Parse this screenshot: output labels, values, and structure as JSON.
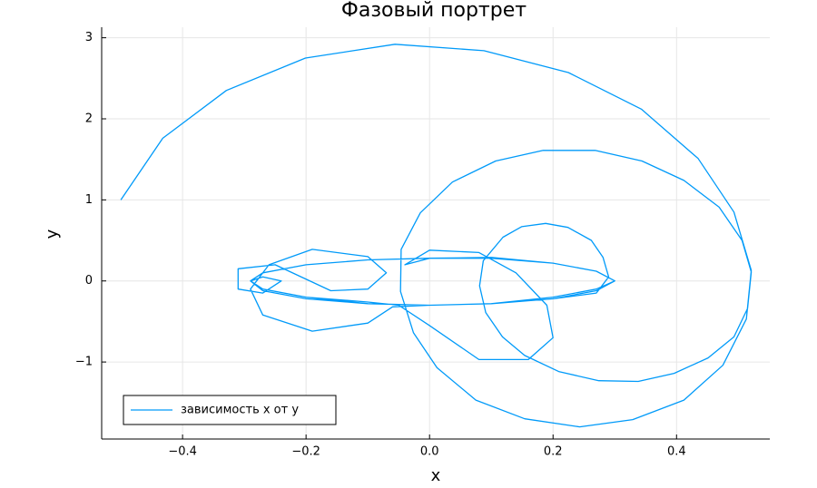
{
  "chart_data": {
    "type": "line",
    "title": "Фазовый портрет",
    "x_label": "x",
    "y_label": "y",
    "x": [
      -0.5,
      -0.432,
      -0.329,
      -0.201,
      -0.056,
      0.088,
      0.225,
      0.343,
      0.435,
      0.493,
      0.521,
      0.513,
      0.475,
      0.412,
      0.329,
      0.243,
      0.154,
      0.075,
      0.012,
      -0.026,
      -0.047,
      -0.046,
      -0.015,
      0.037,
      0.107,
      0.184,
      0.268,
      0.344,
      0.412,
      0.469,
      0.506,
      0.521,
      0.515,
      0.493,
      0.451,
      0.396,
      0.338,
      0.274,
      0.21,
      0.154,
      0.118,
      0.091,
      0.081,
      0.087,
      0.119,
      0.149,
      0.188,
      0.224,
      0.262,
      0.281,
      0.29,
      0.27,
      0.2,
      0.1,
      0.0,
      -0.06,
      -0.1,
      -0.19,
      -0.27,
      -0.29,
      -0.26,
      -0.19,
      -0.1,
      -0.07,
      -0.1,
      -0.16,
      -0.25,
      -0.31,
      -0.31,
      -0.27,
      -0.24,
      -0.27,
      -0.29,
      -0.27,
      -0.2,
      -0.1,
      0.0,
      0.1,
      0.2,
      0.27,
      0.3,
      0.27,
      0.2,
      0.1,
      0.0,
      -0.1,
      -0.2,
      -0.27,
      -0.29,
      -0.27,
      -0.2,
      -0.1,
      -0.05,
      0.0,
      0.08,
      0.16,
      0.2,
      0.19,
      0.14,
      0.08,
      0.0,
      -0.04,
      0.0,
      0.1,
      0.2,
      0.27,
      0.3,
      0.27,
      0.2,
      0.1,
      0.0,
      -0.1,
      -0.2,
      -0.27,
      -0.29
    ],
    "series": [
      {
        "name": "зависимость x от y",
        "color": "#009af9",
        "values": [
          1.0,
          1.76,
          2.35,
          2.75,
          2.92,
          2.84,
          2.57,
          2.12,
          1.51,
          0.85,
          0.13,
          -0.47,
          -1.04,
          -1.47,
          -1.71,
          -1.8,
          -1.7,
          -1.47,
          -1.07,
          -0.64,
          -0.13,
          0.39,
          0.84,
          1.22,
          1.48,
          1.61,
          1.61,
          1.48,
          1.24,
          0.91,
          0.5,
          0.11,
          -0.34,
          -0.69,
          -0.95,
          -1.14,
          -1.24,
          -1.23,
          -1.12,
          -0.92,
          -0.69,
          -0.39,
          -0.06,
          0.25,
          0.54,
          0.67,
          0.71,
          0.66,
          0.5,
          0.29,
          0.05,
          -0.15,
          -0.22,
          -0.28,
          -0.3,
          -0.32,
          -0.52,
          -0.62,
          -0.42,
          -0.1,
          0.2,
          0.39,
          0.3,
          0.1,
          -0.1,
          -0.12,
          0.2,
          0.15,
          -0.1,
          -0.15,
          0.0,
          0.05,
          0.0,
          -0.12,
          -0.22,
          -0.28,
          -0.3,
          -0.28,
          -0.2,
          -0.1,
          0.0,
          0.12,
          0.22,
          0.28,
          0.28,
          0.26,
          0.2,
          0.1,
          0.0,
          -0.1,
          -0.2,
          -0.26,
          -0.3,
          -0.55,
          -0.97,
          -0.97,
          -0.7,
          -0.3,
          0.1,
          0.35,
          0.38,
          0.2,
          0.28,
          0.29,
          0.22,
          0.12,
          0.0,
          -0.12,
          -0.22,
          -0.28,
          -0.3,
          -0.28,
          -0.2,
          -0.1,
          0.0
        ]
      }
    ],
    "xlim": [
      -0.531,
      0.551
    ],
    "ylim": [
      -1.95,
      3.13
    ],
    "xticks": [
      {
        "value": -0.4,
        "label": "−0.4"
      },
      {
        "value": -0.2,
        "label": "−0.2"
      },
      {
        "value": 0,
        "label": "0.0"
      },
      0.2,
      0.4
    ],
    "yticks": [
      {
        "value": -1,
        "label": "−1"
      },
      0,
      1,
      2,
      3
    ],
    "grid": true,
    "legend": "bottom-left"
  }
}
